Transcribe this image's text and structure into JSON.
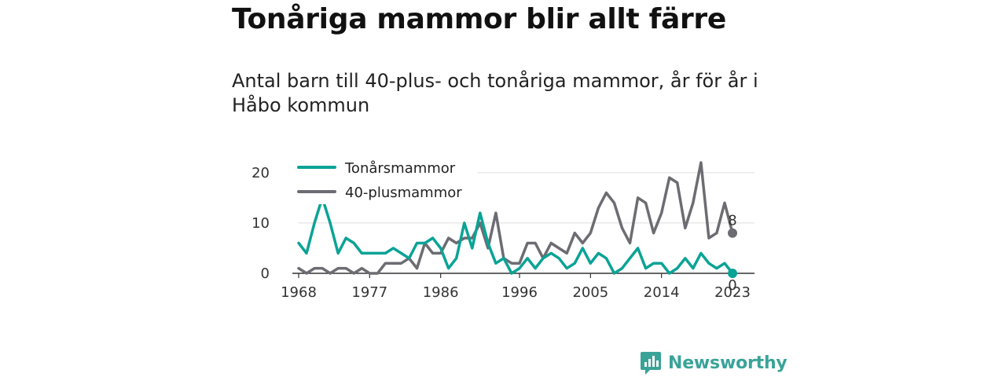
{
  "title": "Tonåriga mammor blir allt färre",
  "subtitle": "Antal barn till 40-plus- och tonåriga mammor, år för år i Håbo kommun",
  "brand": {
    "name": "Newsworthy",
    "icon": "newsworthy-logo-icon",
    "color": "#3aa398"
  },
  "chart_data": {
    "type": "line",
    "xlim": [
      1968,
      2023
    ],
    "ylim": [
      0,
      22
    ],
    "x_ticks": [
      "1968",
      "1977",
      "1986",
      "1996",
      "2005",
      "2014",
      "2023"
    ],
    "y_ticks": [
      "0",
      "10",
      "20"
    ],
    "grid": "horizontal",
    "legend": "top-left",
    "x": [
      1968,
      1969,
      1970,
      1971,
      1972,
      1973,
      1974,
      1975,
      1976,
      1977,
      1978,
      1979,
      1980,
      1981,
      1982,
      1983,
      1984,
      1985,
      1986,
      1987,
      1988,
      1989,
      1990,
      1991,
      1992,
      1993,
      1994,
      1995,
      1996,
      1997,
      1998,
      1999,
      2000,
      2001,
      2002,
      2003,
      2004,
      2005,
      2006,
      2007,
      2008,
      2009,
      2010,
      2011,
      2012,
      2013,
      2014,
      2015,
      2016,
      2017,
      2018,
      2019,
      2020,
      2021,
      2022,
      2023
    ],
    "series": [
      {
        "name": "Tonårsmammor",
        "color": "#0aa396",
        "values": [
          6,
          4,
          10,
          15,
          10,
          4,
          7,
          6,
          4,
          4,
          4,
          4,
          5,
          4,
          3,
          6,
          6,
          7,
          5,
          1,
          3,
          10,
          5,
          12,
          6,
          2,
          3,
          0,
          1,
          3,
          1,
          3,
          4,
          3,
          1,
          2,
          5,
          2,
          4,
          3,
          0,
          1,
          3,
          5,
          1,
          2,
          2,
          0,
          1,
          3,
          1,
          4,
          2,
          1,
          2,
          0
        ],
        "end_label": "0"
      },
      {
        "name": "40-plusmammor",
        "color": "#6c6c72",
        "values": [
          1,
          0,
          1,
          1,
          0,
          1,
          1,
          0,
          1,
          0,
          0,
          2,
          2,
          2,
          3,
          1,
          6,
          4,
          4,
          7,
          6,
          7,
          7,
          10,
          5,
          12,
          3,
          2,
          2,
          6,
          6,
          3,
          6,
          5,
          4,
          8,
          6,
          8,
          13,
          16,
          14,
          9,
          6,
          15,
          14,
          8,
          12,
          19,
          18,
          9,
          14,
          22,
          7,
          8,
          14,
          8
        ],
        "end_label": "8"
      }
    ]
  }
}
